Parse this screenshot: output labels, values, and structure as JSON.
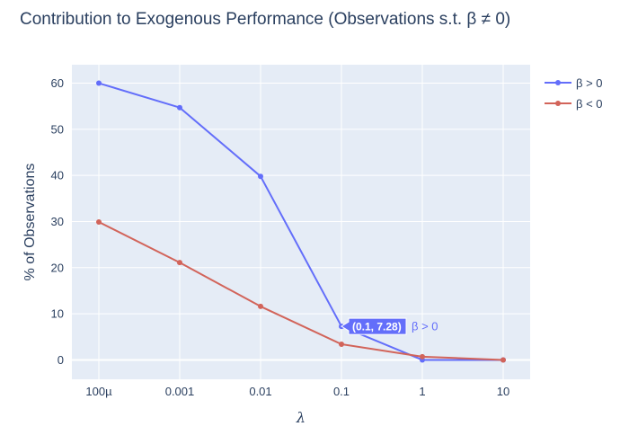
{
  "chart_data": {
    "type": "line",
    "title": "Contribution to Exogenous Performance (Observations s.t. β ≠ 0)",
    "xlabel": "λ",
    "ylabel": "% of Observations",
    "categories": [
      "100µ",
      "0.001",
      "0.01",
      "0.1",
      "1",
      "10"
    ],
    "x": [
      0.0001,
      0.001,
      0.01,
      0.1,
      1,
      10
    ],
    "x_scale": "log",
    "yticks": [
      "0",
      "10",
      "20",
      "30",
      "40",
      "50",
      "60"
    ],
    "ylim": [
      -4.2,
      64
    ],
    "grid": true,
    "legend_position": "top-right",
    "series": [
      {
        "name": "β > 0",
        "color": "#636efa",
        "values": [
          60,
          54.7,
          39.8,
          7.28,
          0,
          0
        ]
      },
      {
        "name": "β < 0",
        "color": "#d2645a",
        "values": [
          29.9,
          21.1,
          11.6,
          3.4,
          0.7,
          0
        ]
      }
    ],
    "hover": {
      "text": "(0.1, 7.28)",
      "series_name": "β > 0",
      "color": "#636efa"
    }
  },
  "colors": {
    "plot_bg": "#e5ecf6",
    "grid": "#ffffff",
    "text": "#2a3f5f"
  }
}
